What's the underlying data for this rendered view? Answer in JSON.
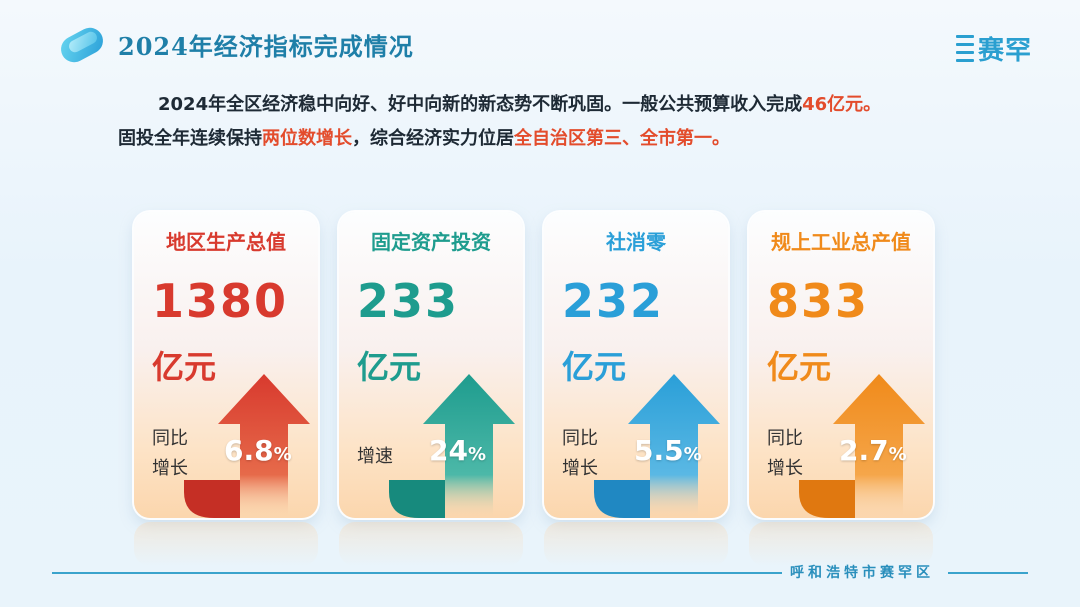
{
  "header": {
    "title": "2024年经济指标完成情况",
    "brand": "赛罕"
  },
  "intro": {
    "line1_a": "2024年全区经济稳中向好、好中向新的新态势不断巩固。一般公共预算收入完成",
    "line1_hl": "46亿元。",
    "line2_a": "固投全年连续保持",
    "line2_hl1": "两位数增长",
    "line2_b": "，综合经济实力位居",
    "line2_hl2": "全自治区第三、全市第一。"
  },
  "cards": [
    {
      "title": "地区生产总值",
      "value": "1380",
      "unit": "亿元",
      "label1": "同比",
      "label2": "增长",
      "pct": "6.8",
      "pct_sign": "%",
      "color": "#d83a2e"
    },
    {
      "title": "固定资产投资",
      "value": "233",
      "unit": "亿元",
      "label1": "增速",
      "label2": "",
      "pct": "24",
      "pct_sign": "%",
      "color": "#1e9c8e"
    },
    {
      "title": "社消零",
      "value": "232",
      "unit": "亿元",
      "label1": "同比",
      "label2": "增长",
      "pct": "5.5",
      "pct_sign": "%",
      "color": "#2a9fd8"
    },
    {
      "title": "规上工业总产值",
      "value": "833",
      "unit": "亿元",
      "label1": "同比",
      "label2": "增长",
      "pct": "2.7",
      "pct_sign": "%",
      "color": "#f08a1a"
    }
  ],
  "footer": {
    "text": "呼和浩特市赛罕区"
  }
}
